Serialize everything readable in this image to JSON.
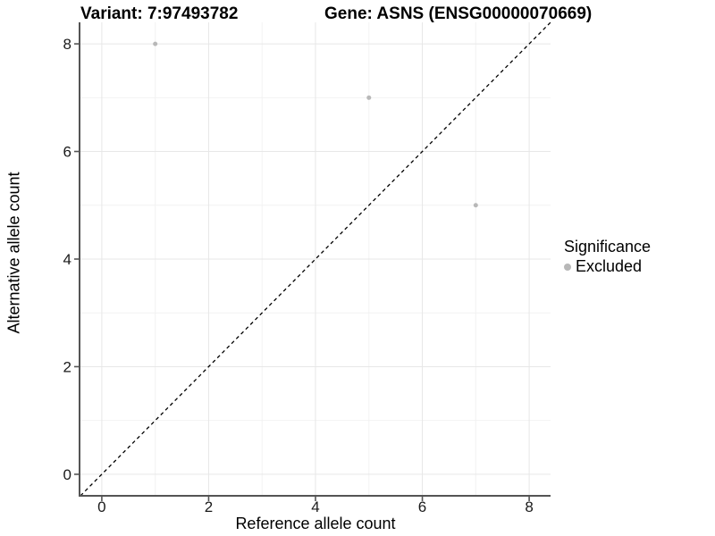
{
  "header": {
    "variant_title": "Variant: 7:97493782",
    "gene_title": "Gene: ASNS (ENSG00000070669)"
  },
  "legend": {
    "title": "Significance",
    "items": [
      {
        "label": "Excluded",
        "marker": "circle",
        "color": "#b8b8b8"
      }
    ]
  },
  "colors": {
    "background": "#ffffff",
    "grid_major": "#e7e7e7",
    "grid_minor": "#f2f2f2",
    "axis_line": "#545454",
    "tick_mark": "#545454",
    "tick_text": "#1a1a1a",
    "point": "#b8b8b8",
    "dashed_line": "#000000"
  },
  "chart_data": {
    "type": "scatter",
    "title": "Variant: 7:97493782   |   Gene: ASNS (ENSG00000070669)",
    "xlabel": "Reference allele count",
    "ylabel": "Alternative allele count",
    "xlim": [
      -0.4,
      8.4
    ],
    "ylim": [
      -0.4,
      8.4
    ],
    "x_ticks": [
      0,
      2,
      4,
      6,
      8
    ],
    "y_ticks": [
      0,
      2,
      4,
      6,
      8
    ],
    "x_minor_ticks": [
      1,
      3,
      5,
      7
    ],
    "y_minor_ticks": [
      1,
      3,
      5,
      7
    ],
    "grid": true,
    "legend_position": "right-center",
    "series": [
      {
        "name": "Excluded",
        "color": "#b8b8b8",
        "points": [
          {
            "x": 1,
            "y": 8
          },
          {
            "x": 5,
            "y": 7
          },
          {
            "x": 7,
            "y": 5
          }
        ]
      }
    ],
    "reference_line": {
      "type": "identity",
      "equation": "y = x",
      "style": "dashed",
      "color": "#000000"
    }
  }
}
